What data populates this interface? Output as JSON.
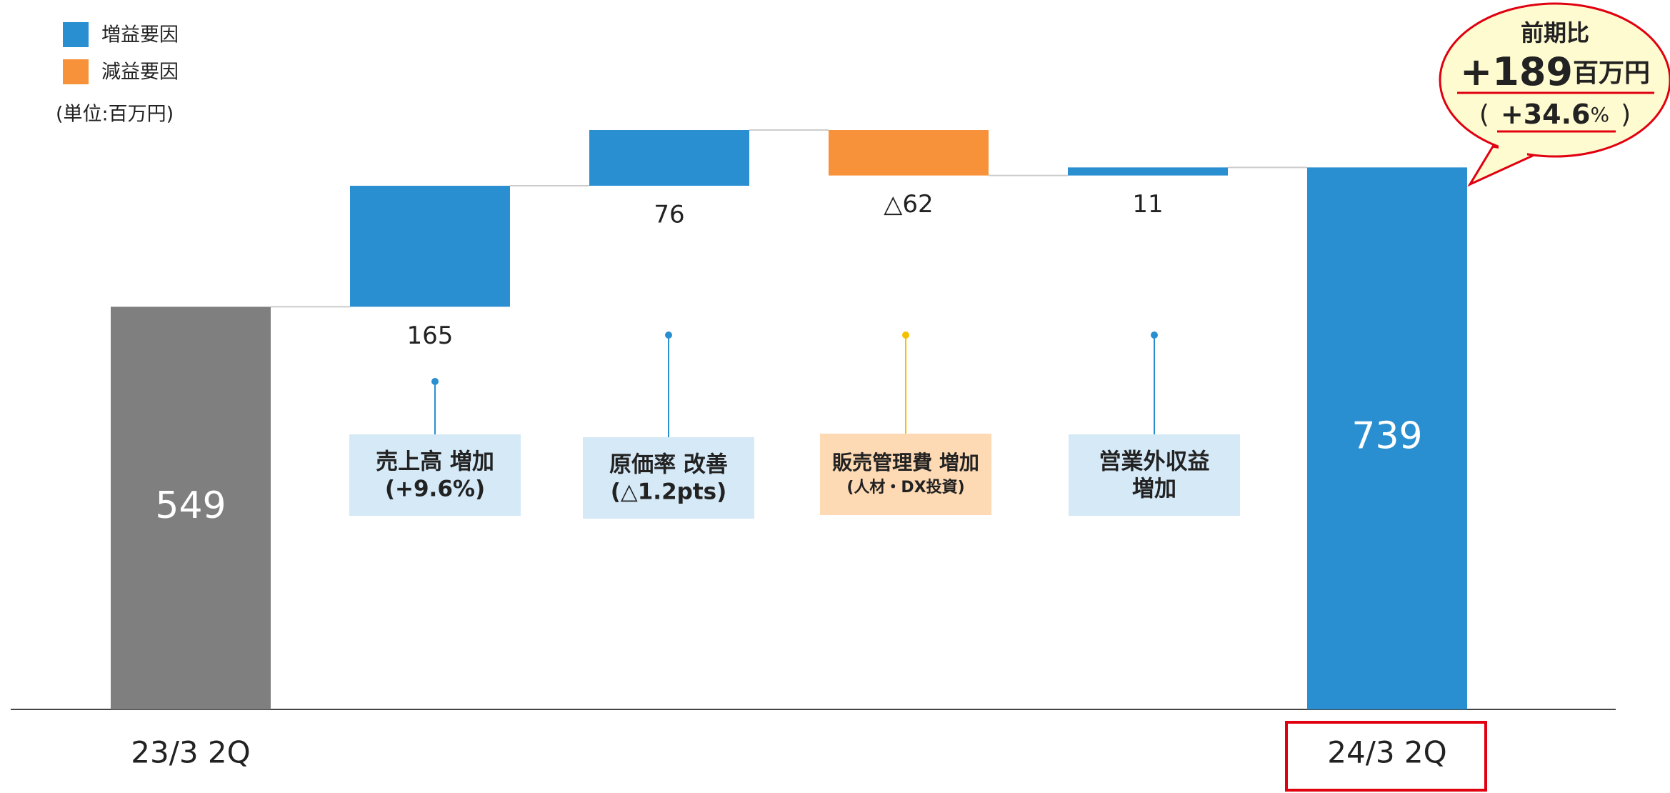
{
  "chart_data": {
    "type": "waterfall",
    "unit_label": "(単位:百万円)",
    "categories": [
      "23/3  2Q",
      null,
      null,
      null,
      null,
      "24/3  2Q"
    ],
    "values": [
      549,
      165,
      76,
      -62,
      11,
      739
    ],
    "value_labels": [
      "549",
      "165",
      "76",
      "△62",
      "11",
      "739"
    ],
    "measures": [
      "absolute",
      "relative",
      "relative",
      "relative",
      "relative",
      "total"
    ],
    "colors": [
      "#7f7f7f",
      "#2a8fd0",
      "#2a8fd0",
      "#f7923a",
      "#2a8fd0",
      "#2a8fd0"
    ],
    "legend": [
      {
        "name": "増益要因",
        "color": "#2a8fd0"
      },
      {
        "name": "減益要因",
        "color": "#f7923a"
      }
    ],
    "annotations": [
      {
        "lines": [
          "売上高 増加",
          "(+9.6%)"
        ],
        "box_color": "#d5e9f7",
        "dot_color": "#2a8fd0"
      },
      {
        "lines": [
          "原価率 改善",
          "(△1.2pts)"
        ],
        "box_color": "#d5e9f7",
        "dot_color": "#2a8fd0"
      },
      {
        "lines": [
          "販売管理費 増加",
          "(人材・DX投資)"
        ],
        "box_color": "#fdd9b4",
        "dot_color": "#f5c000"
      },
      {
        "lines": [
          "営業外収益",
          "増加"
        ],
        "box_color": "#d5e9f7",
        "dot_color": "#2a8fd0"
      }
    ],
    "callout": {
      "title": "前期比",
      "change": "+189",
      "change_unit": "百万円",
      "open": "(",
      "pct": "+34.6",
      "pct_unit": "%",
      "close": ")"
    }
  }
}
